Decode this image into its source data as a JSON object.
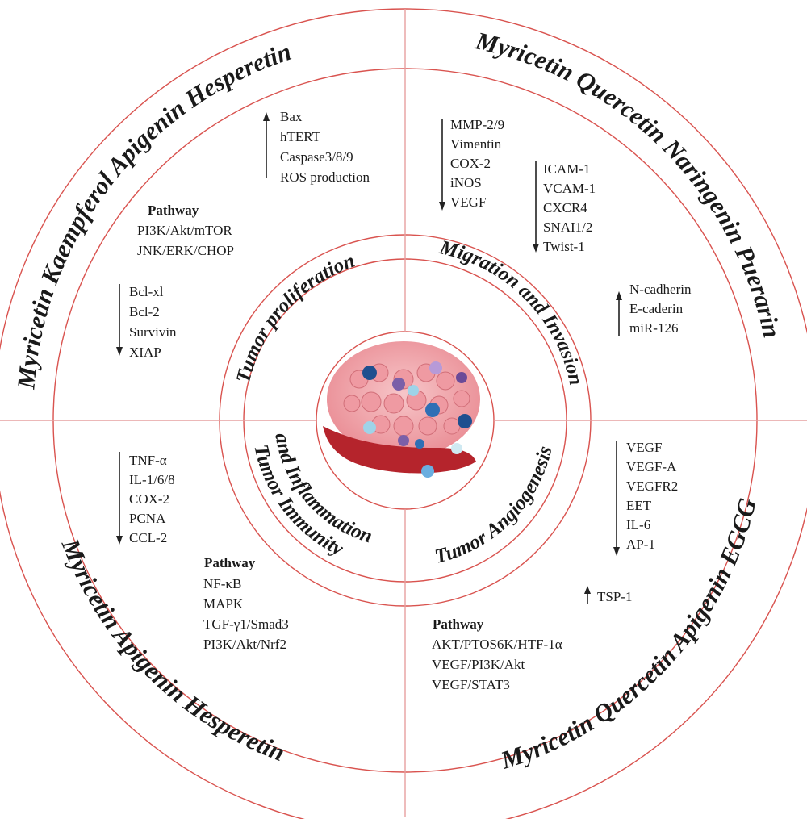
{
  "colors": {
    "ring": "#d9534f",
    "divider": "#e6a0a0",
    "text": "#1a1a1a",
    "tissue": "#f2a3a8",
    "vessel": "#b5242c",
    "blue_cell": "#2f6fb5",
    "purple_cell": "#7b5fa8"
  },
  "outer_ring": {
    "top_left": "Myricetin  Kaempferol  Apigenin  Hesperetin",
    "top_right": "Myricetin  Quercetin  Naringenin  Puerarin",
    "bottom_left": "Myricetin  Apigenin  Hesperetin",
    "bottom_right": "Myricetin  Quercetin  Apigenin  EGCG"
  },
  "inner_ring": {
    "top_left": "Tumor proliferation",
    "top_right": "Migration and Invasion",
    "bottom_left_1": "Tumor Immunity",
    "bottom_left_2": "and Inflammation",
    "bottom_right": "Tumor Angiogenesis"
  },
  "center_image": {
    "icon": "tumor-tissue-illustration"
  },
  "quadrants": {
    "proliferation": {
      "up_markers": [
        "Bax",
        "hTERT",
        "Caspase3/8/9",
        "ROS production"
      ],
      "pathway_label": "Pathway",
      "pathways": [
        "PI3K/Akt/mTOR",
        "JNK/ERK/CHOP"
      ],
      "down_markers": [
        "Bcl-xl",
        "Bcl-2",
        "Survivin",
        "XIAP"
      ]
    },
    "migration": {
      "down_markers_a": [
        "MMP-2/9",
        "Vimentin",
        "COX-2",
        "iNOS",
        "VEGF"
      ],
      "down_markers_b": [
        "ICAM-1",
        "VCAM-1",
        "CXCR4",
        "SNAI1/2",
        "Twist-1"
      ],
      "up_markers": [
        "N-cadherin",
        "E-caderin",
        "miR-126"
      ]
    },
    "immunity": {
      "down_markers": [
        "TNF-α",
        "IL-1/6/8",
        "COX-2",
        "PCNA",
        "CCL-2"
      ],
      "pathway_label": "Pathway",
      "pathways": [
        "NF-κB",
        "MAPK",
        "TGF-γ1/Smad3",
        "PI3K/Akt/Nrf2"
      ]
    },
    "angiogenesis": {
      "down_markers": [
        "VEGF",
        "VEGF-A",
        "VEGFR2",
        "EET",
        "IL-6",
        "AP-1"
      ],
      "up_markers": [
        "TSP-1"
      ],
      "pathway_label": "Pathway",
      "pathways": [
        "AKT/PTOS6K/HTF-1α",
        "VEGF/PI3K/Akt",
        "VEGF/STAT3"
      ]
    }
  }
}
